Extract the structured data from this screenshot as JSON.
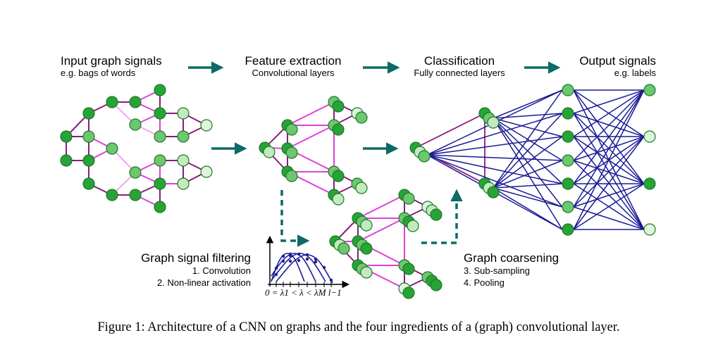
{
  "stages": {
    "input": {
      "title": "Input graph signals",
      "subtitle": "e.g. bags of words"
    },
    "features": {
      "title": "Feature extraction",
      "subtitle": "Convolutional layers"
    },
    "classification": {
      "title": "Classification",
      "subtitle": "Fully connected layers"
    },
    "output": {
      "title": "Output signals",
      "subtitle": "e.g. labels"
    }
  },
  "filtering": {
    "title": "Graph signal filtering",
    "steps": [
      "1. Convolution",
      "2. Non-linear activation"
    ],
    "axis_label": "0 = λ1 < λ < λM l−1"
  },
  "coarsening": {
    "title": "Graph coarsening",
    "steps": [
      "3. Sub-sampling",
      "4. Pooling"
    ]
  },
  "caption": "Figure 1: Architecture of a CNN on graphs and the four ingredients of a (graph) convolutional layer.",
  "colors": {
    "node_dark": "#27a337",
    "node_mid": "#6cc770",
    "node_light": "#c3e9bf",
    "node_stroke": "#1a7a24",
    "edge_magenta": "#e03fd8",
    "edge_purple": "#8a1c7c",
    "edge_pink": "#f2a8ec",
    "edge_navy": "#1b1b96",
    "arrow_teal": "#0d6a66"
  }
}
